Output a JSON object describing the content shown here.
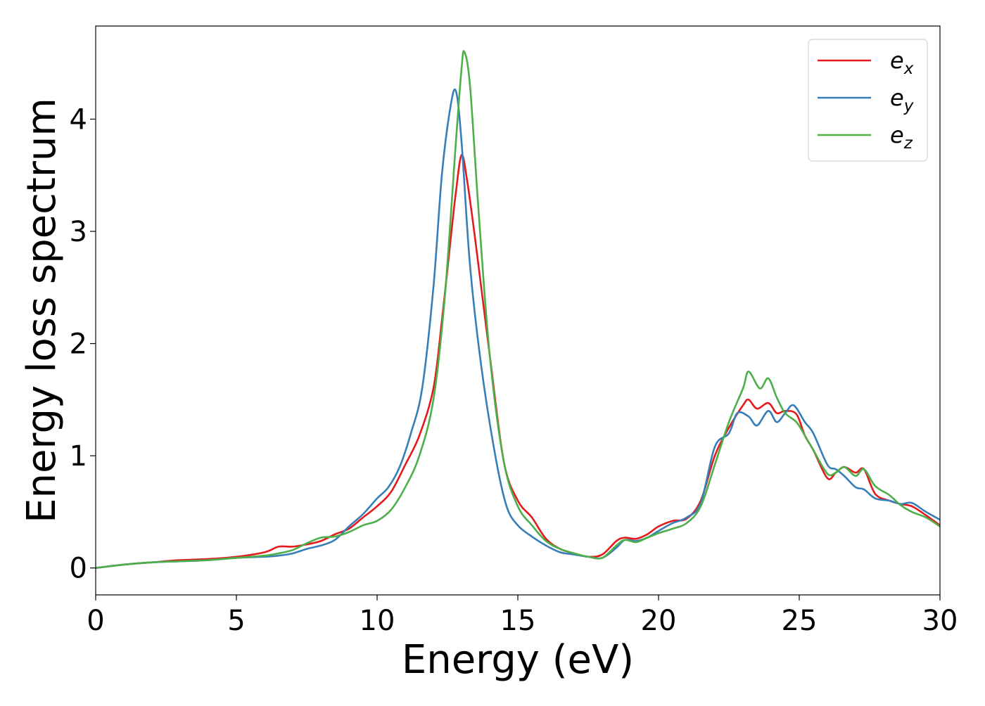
{
  "chart_data": {
    "type": "line",
    "title": "",
    "xlabel": "Energy (eV)",
    "ylabel": "Energy loss spectrum",
    "xlim": [
      0,
      30
    ],
    "ylim": [
      -0.24,
      4.83
    ],
    "xticks": [
      0,
      5,
      10,
      15,
      20,
      25,
      30
    ],
    "yticks": [
      0,
      1,
      2,
      3,
      4
    ],
    "grid": false,
    "legend_position": "top-right",
    "series": [
      {
        "name": "e_x",
        "label_base": "e",
        "label_sub": "x",
        "color": "#e41a1c",
        "x": [
          0,
          1,
          2,
          3,
          4,
          5,
          6,
          6.5,
          7,
          7.5,
          8,
          8.5,
          9,
          9.5,
          10,
          10.5,
          11,
          11.5,
          12,
          12.3,
          12.6,
          12.8,
          13.0,
          13.2,
          13.5,
          14,
          14.5,
          15,
          15.5,
          16,
          16.5,
          17,
          17.5,
          18,
          18.5,
          18.8,
          19.2,
          19.6,
          20,
          20.5,
          21,
          21.5,
          22,
          22.5,
          23,
          23.2,
          23.5,
          23.9,
          24.2,
          24.5,
          24.9,
          25.2,
          25.5,
          26,
          26.3,
          26.6,
          27,
          27.3,
          27.7,
          28.2,
          28.6,
          29,
          29.5,
          30
        ],
        "values": [
          0,
          0.03,
          0.05,
          0.07,
          0.08,
          0.1,
          0.14,
          0.19,
          0.19,
          0.21,
          0.24,
          0.3,
          0.35,
          0.45,
          0.55,
          0.68,
          0.92,
          1.18,
          1.6,
          2.2,
          2.9,
          3.35,
          3.68,
          3.45,
          2.9,
          1.9,
          0.95,
          0.6,
          0.45,
          0.26,
          0.17,
          0.13,
          0.1,
          0.12,
          0.24,
          0.27,
          0.26,
          0.3,
          0.37,
          0.42,
          0.44,
          0.6,
          1.0,
          1.25,
          1.45,
          1.5,
          1.42,
          1.47,
          1.38,
          1.4,
          1.37,
          1.18,
          1.05,
          0.8,
          0.85,
          0.9,
          0.85,
          0.88,
          0.66,
          0.6,
          0.57,
          0.55,
          0.47,
          0.38
        ]
      },
      {
        "name": "e_y",
        "label_base": "e",
        "label_sub": "y",
        "color": "#377eb8",
        "x": [
          0,
          1,
          2,
          3,
          4,
          5,
          6,
          6.5,
          7,
          7.5,
          8,
          8.5,
          9,
          9.5,
          10,
          10.4,
          10.8,
          11.2,
          11.6,
          12.0,
          12.3,
          12.6,
          12.8,
          13.0,
          13.3,
          13.7,
          14.2,
          14.6,
          15,
          15.5,
          16,
          16.5,
          17,
          17.5,
          18,
          18.5,
          18.8,
          19.2,
          19.6,
          20,
          20.5,
          21,
          21.5,
          22,
          22.5,
          22.8,
          23.2,
          23.5,
          23.9,
          24.2,
          24.5,
          24.8,
          25.2,
          25.5,
          26,
          26.3,
          26.6,
          27,
          27.3,
          27.7,
          28.2,
          28.6,
          29,
          29.5,
          30
        ],
        "values": [
          0,
          0.03,
          0.05,
          0.06,
          0.07,
          0.09,
          0.1,
          0.11,
          0.13,
          0.17,
          0.2,
          0.25,
          0.37,
          0.48,
          0.62,
          0.72,
          0.9,
          1.2,
          1.6,
          2.5,
          3.5,
          4.1,
          4.25,
          3.8,
          2.7,
          1.8,
          1.0,
          0.55,
          0.38,
          0.28,
          0.2,
          0.14,
          0.12,
          0.1,
          0.09,
          0.18,
          0.25,
          0.24,
          0.27,
          0.33,
          0.4,
          0.45,
          0.58,
          1.08,
          1.2,
          1.38,
          1.35,
          1.27,
          1.4,
          1.3,
          1.38,
          1.45,
          1.3,
          1.2,
          0.92,
          0.88,
          0.82,
          0.72,
          0.7,
          0.62,
          0.6,
          0.57,
          0.58,
          0.5,
          0.43
        ]
      },
      {
        "name": "e_z",
        "label_base": "e",
        "label_sub": "z",
        "color": "#4daf4a",
        "x": [
          0,
          1,
          2,
          3,
          4,
          5,
          6,
          6.5,
          7,
          7.5,
          8,
          8.5,
          9,
          9.5,
          10,
          10.5,
          11,
          11.5,
          12,
          12.4,
          12.8,
          13.0,
          13.1,
          13.3,
          13.6,
          14,
          14.5,
          15,
          15.5,
          16,
          16.5,
          17,
          17.5,
          18,
          18.5,
          18.8,
          19.2,
          19.6,
          20,
          20.5,
          21,
          21.5,
          22,
          22.5,
          23,
          23.2,
          23.6,
          23.9,
          24.2,
          24.5,
          24.9,
          25.2,
          25.5,
          26,
          26.3,
          26.6,
          27,
          27.3,
          27.7,
          28.2,
          28.6,
          29,
          29.5,
          30
        ],
        "values": [
          0,
          0.03,
          0.05,
          0.06,
          0.07,
          0.09,
          0.11,
          0.13,
          0.16,
          0.22,
          0.27,
          0.28,
          0.32,
          0.38,
          0.42,
          0.52,
          0.72,
          1.0,
          1.5,
          2.4,
          3.8,
          4.45,
          4.6,
          4.3,
          3.2,
          1.9,
          0.95,
          0.55,
          0.38,
          0.24,
          0.17,
          0.13,
          0.1,
          0.09,
          0.2,
          0.25,
          0.23,
          0.27,
          0.31,
          0.35,
          0.4,
          0.55,
          0.92,
          1.3,
          1.6,
          1.75,
          1.6,
          1.69,
          1.52,
          1.38,
          1.3,
          1.18,
          1.05,
          0.84,
          0.85,
          0.9,
          0.82,
          0.88,
          0.73,
          0.65,
          0.56,
          0.5,
          0.45,
          0.37
        ]
      }
    ]
  }
}
